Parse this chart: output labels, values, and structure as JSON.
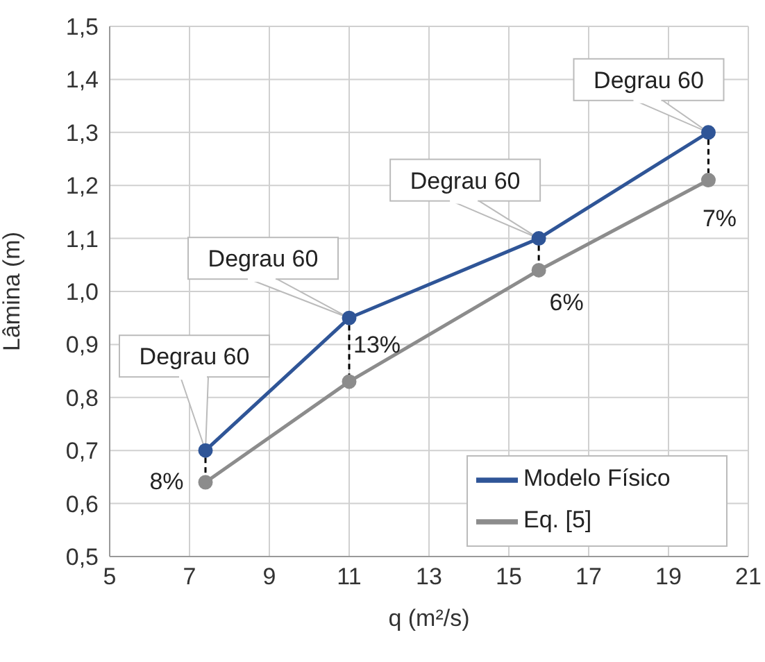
{
  "chart_data": {
    "type": "line",
    "xlabel": "q (m²/s)",
    "ylabel": "Lâmina (m)",
    "x": [
      7.4,
      11,
      15.75,
      20
    ],
    "series": [
      {
        "name": "Modelo Físico",
        "color": "#2f5597",
        "values": [
          0.7,
          0.95,
          1.1,
          1.3
        ]
      },
      {
        "name": "Eq. [5]",
        "color": "#8c8c8c",
        "values": [
          0.64,
          0.83,
          1.04,
          1.21
        ]
      }
    ],
    "xlim": [
      5,
      21
    ],
    "xticks": [
      5,
      7,
      9,
      11,
      13,
      15,
      17,
      19,
      21
    ],
    "ylim": [
      0.5,
      1.5
    ],
    "yticks": [
      {
        "value": 0.5,
        "label": "0,5"
      },
      {
        "value": 0.6,
        "label": "0,6"
      },
      {
        "value": 0.7,
        "label": "0,7"
      },
      {
        "value": 0.8,
        "label": "0,8"
      },
      {
        "value": 0.9,
        "label": "0,9"
      },
      {
        "value": 1.0,
        "label": "1,0"
      },
      {
        "value": 1.1,
        "label": "1,1"
      },
      {
        "value": 1.2,
        "label": "1,2"
      },
      {
        "value": 1.3,
        "label": "1,3"
      },
      {
        "value": 1.4,
        "label": "1,4"
      },
      {
        "value": 1.5,
        "label": "1,5"
      }
    ],
    "annotations": [
      {
        "text": "Degrau 60",
        "x": 7.4,
        "y": 0.7
      },
      {
        "text": "Degrau 60",
        "x": 11,
        "y": 0.95
      },
      {
        "text": "Degrau 60",
        "x": 15.75,
        "y": 1.1
      },
      {
        "text": "Degrau 60",
        "x": 20,
        "y": 1.3
      },
      "8%",
      "13%",
      "6%",
      "7%"
    ],
    "grid": true,
    "legend": "bottom right",
    "marker": "circle",
    "line_style": "solid"
  }
}
